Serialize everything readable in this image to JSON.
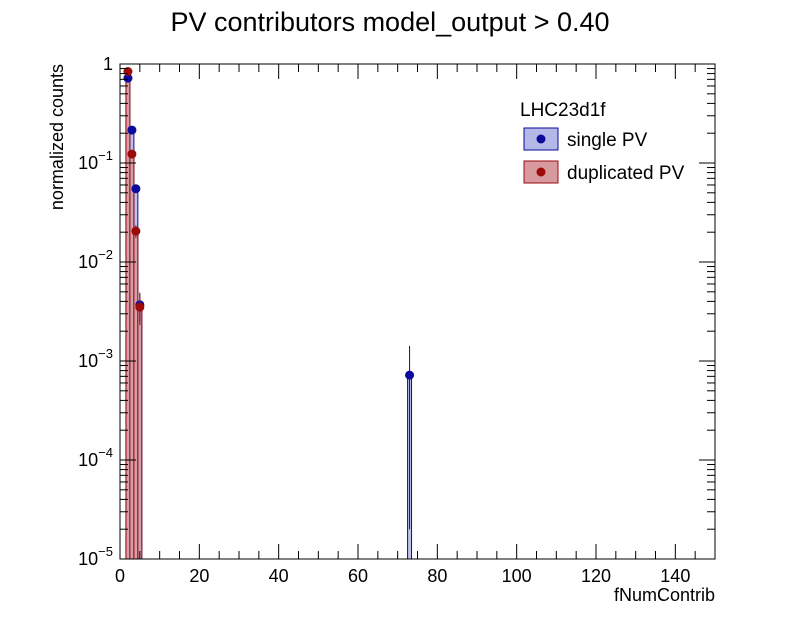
{
  "chart_data": {
    "type": "bar",
    "title": "PV contributors  model_output > 0.40",
    "xlabel": "fNumContrib",
    "ylabel": "normalized counts",
    "xlim": [
      0,
      150
    ],
    "ylim": [
      1e-05,
      1
    ],
    "yscale": "log",
    "grid": false,
    "legend_placement": "top-right",
    "legend_header": "LHC23d1f",
    "x_ticks": [
      0,
      20,
      40,
      60,
      80,
      100,
      120,
      140
    ],
    "x_tick_labels": [
      "0",
      "20",
      "40",
      "60",
      "80",
      "100",
      "120",
      "140"
    ],
    "y_tick_labels": [
      {
        "value": 1,
        "base": "1",
        "exp": ""
      },
      {
        "value": 0.1,
        "base": "10",
        "exp": "−1"
      },
      {
        "value": 0.01,
        "base": "10",
        "exp": "−2"
      },
      {
        "value": 0.001,
        "base": "10",
        "exp": "−3"
      },
      {
        "value": 0.0001,
        "base": "10",
        "exp": "−4"
      },
      {
        "value": 1e-05,
        "base": "10",
        "exp": "−5"
      }
    ],
    "series": [
      {
        "name": "single PV",
        "line_color": "#0a0a9c",
        "fill_color": "#b4b8e6",
        "bin_width": 1,
        "points": [
          {
            "x": 2,
            "y": 0.72,
            "yerr": 0.02
          },
          {
            "x": 3,
            "y": 0.215,
            "yerr": 0.01
          },
          {
            "x": 4,
            "y": 0.055,
            "yerr": 0.005
          },
          {
            "x": 5,
            "y": 0.0037,
            "yerr": 0.0012
          },
          {
            "x": 73,
            "y": 0.00072,
            "yerr": 0.0007
          }
        ]
      },
      {
        "name": "duplicated PV",
        "line_color": "#9c0a0a",
        "fill_color": "#d69a9f",
        "bin_width": 1,
        "points": [
          {
            "x": 2,
            "y": 0.84,
            "yerr": 0.03
          },
          {
            "x": 3,
            "y": 0.123,
            "yerr": 0.008
          },
          {
            "x": 4,
            "y": 0.0205,
            "yerr": 0.003
          },
          {
            "x": 5,
            "y": 0.0035,
            "yerr": 0.0012
          }
        ]
      }
    ]
  }
}
